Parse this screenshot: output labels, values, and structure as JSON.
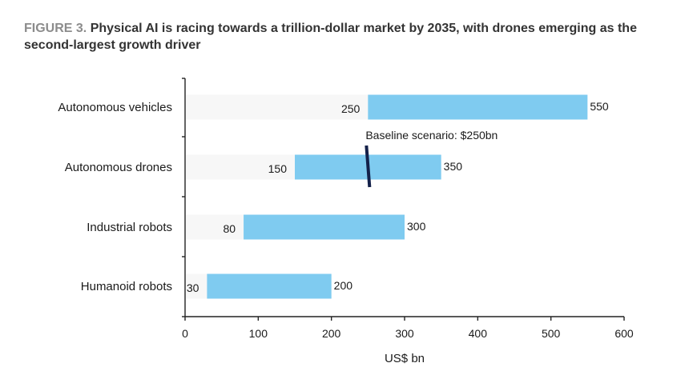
{
  "figure": {
    "label": "FIGURE 3.",
    "title": "Physical AI is racing towards a trillion-dollar market by 2035, with drones  emerging as the second-largest growth driver"
  },
  "chart_data": {
    "type": "bar",
    "orientation": "horizontal",
    "style": "floating-range",
    "categories": [
      "Autonomous vehicles",
      "Autonomous drones",
      "Industrial robots",
      "Humanoid robots"
    ],
    "series": [
      {
        "low": [
          250,
          150,
          80,
          30
        ],
        "high": [
          550,
          350,
          300,
          200
        ]
      }
    ],
    "low_labels": [
      "250",
      "150",
      "80",
      "30"
    ],
    "high_labels": [
      "550",
      "350",
      "300",
      "200"
    ],
    "xlabel": "US$ bn",
    "ylabel": "",
    "xlim": [
      0,
      600
    ],
    "x_ticks": [
      0,
      100,
      200,
      300,
      400,
      500,
      600
    ],
    "x_tick_labels": [
      "0",
      "100",
      "200",
      "300",
      "400",
      "500",
      "600"
    ],
    "grid": false,
    "annotation": {
      "text": "Baseline scenario: $250bn",
      "category": "Autonomous drones",
      "value": 250
    },
    "colors": {
      "range_bar": "#7fcbf0",
      "track": "#f7f7f7",
      "baseline_marker": "#14214a",
      "axis": "#222222"
    }
  }
}
